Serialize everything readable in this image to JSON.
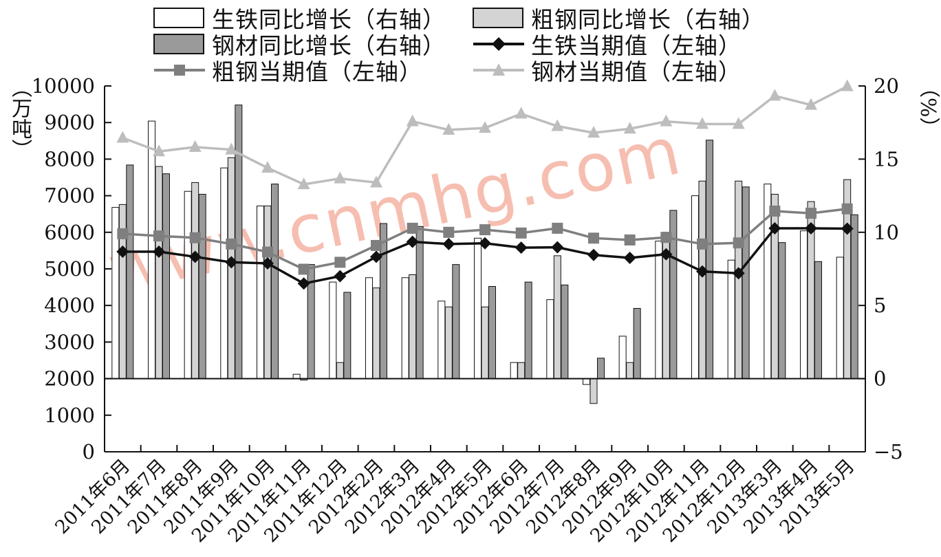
{
  "legend": {
    "items": [
      {
        "key": "iron_yoy",
        "label": "生铁同比增长（右轴）",
        "kind": "bar",
        "fill": "#ffffff"
      },
      {
        "key": "steel_yoy",
        "label": "粗钢同比增长（右轴）",
        "kind": "bar",
        "fill": "#d4d4d4"
      },
      {
        "key": "prod_yoy",
        "label": "钢材同比增长（右轴）",
        "kind": "bar",
        "fill": "#9a9a9a"
      },
      {
        "key": "iron_val",
        "label": "生铁当期值（左轴）",
        "kind": "line",
        "color": "#111111",
        "marker": "diamond"
      },
      {
        "key": "steel_val",
        "label": "粗钢当期值（左轴）",
        "kind": "line",
        "color": "#7f7f7f",
        "marker": "square"
      },
      {
        "key": "prod_val",
        "label": "钢材当期值（左轴）",
        "kind": "line",
        "color": "#bdbdbd",
        "marker": "triangle"
      }
    ]
  },
  "axis_units": {
    "left": "（万吨）",
    "right": "（%）"
  },
  "watermark": "www.cnmhg.com",
  "chart_data": {
    "type": "bar",
    "categories": [
      "2011年6月",
      "2011年7月",
      "2011年8月",
      "2011年9月",
      "2011年10月",
      "2011年11月",
      "2011年12月",
      "2012年2月",
      "2012年3月",
      "2012年4月",
      "2012年5月",
      "2012年6月",
      "2012年7月",
      "2012年8月",
      "2012年9月",
      "2012年10月",
      "2012年11月",
      "2012年12月",
      "2013年3月",
      "2013年4月",
      "2013年5月"
    ],
    "left_axis": {
      "min": 0,
      "max": 10000,
      "ticks": [
        0,
        1000,
        2000,
        3000,
        4000,
        5000,
        6000,
        7000,
        8000,
        9000,
        10000
      ]
    },
    "right_axis": {
      "min": -5,
      "max": 20,
      "ticks": [
        -5,
        0,
        5,
        10,
        15,
        20
      ]
    },
    "bar_series": [
      {
        "name": "生铁同比增长（右轴）",
        "axis": "right",
        "fill": "#ffffff",
        "values": [
          11.7,
          17.6,
          12.8,
          14.4,
          11.8,
          0.3,
          6.6,
          6.9,
          6.9,
          5.3,
          9.6,
          1.1,
          5.4,
          -0.4,
          2.9,
          9.4,
          12.5,
          8.1,
          13.3,
          10.1,
          8.3
        ]
      },
      {
        "name": "粗钢同比增长（右轴）",
        "axis": "right",
        "fill": "#d4d4d4",
        "values": [
          11.9,
          14.5,
          13.4,
          15.1,
          11.8,
          -0.1,
          1.1,
          6.2,
          7.1,
          4.9,
          4.9,
          1.1,
          8.4,
          -1.7,
          1.1,
          10.0,
          13.5,
          13.5,
          12.6,
          12.1,
          13.6
        ]
      },
      {
        "name": "钢材同比增长（右轴）",
        "axis": "right",
        "fill": "#9a9a9a",
        "values": [
          14.6,
          14.0,
          12.6,
          18.7,
          13.3,
          7.8,
          5.9,
          10.6,
          10.4,
          7.8,
          6.3,
          6.6,
          6.4,
          1.4,
          4.8,
          11.5,
          16.3,
          13.1,
          9.3,
          8.0,
          11.2
        ]
      }
    ],
    "line_series": [
      {
        "name": "生铁当期值（左轴）",
        "axis": "left",
        "color": "#111111",
        "marker": "diamond",
        "values": [
          5470,
          5470,
          5330,
          5180,
          5150,
          4600,
          4800,
          5330,
          5740,
          5680,
          5700,
          5580,
          5590,
          5380,
          5300,
          5400,
          4930,
          4880,
          6110,
          6110,
          6100
        ]
      },
      {
        "name": "粗钢当期值（左轴）",
        "axis": "left",
        "color": "#7f7f7f",
        "marker": "square",
        "values": [
          5960,
          5900,
          5850,
          5680,
          5460,
          4990,
          5180,
          5640,
          6110,
          6000,
          6070,
          5980,
          6110,
          5840,
          5790,
          5860,
          5680,
          5710,
          6580,
          6520,
          6640
        ]
      },
      {
        "name": "钢材当期值（左轴）",
        "axis": "left",
        "color": "#bdbdbd",
        "marker": "triangle",
        "values": [
          8580,
          8210,
          8330,
          8260,
          7760,
          7310,
          7470,
          7360,
          9030,
          8800,
          8850,
          9240,
          8900,
          8720,
          8830,
          9030,
          8960,
          8960,
          9730,
          9480,
          9990
        ]
      }
    ],
    "title": "",
    "xlabel": "",
    "ylabel": "万吨",
    "y2label": "%"
  }
}
